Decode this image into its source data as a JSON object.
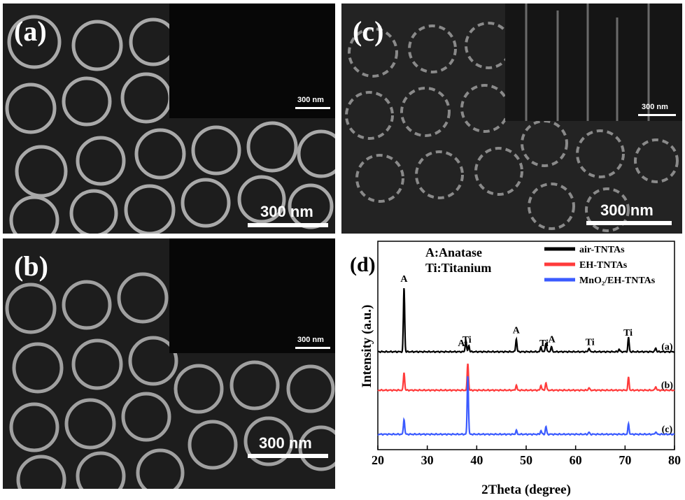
{
  "panels": {
    "a": {
      "label": "(a)",
      "scale_main": "300 nm",
      "scale_inset": "300 nm"
    },
    "b": {
      "label": "(b)",
      "scale_main": "300 nm",
      "scale_inset": "300 nm"
    },
    "c": {
      "label": "(c)",
      "scale_main": "300 nm",
      "scale_inset": "300 nm"
    },
    "d": {
      "label": "(d)"
    }
  },
  "colors": {
    "air": "#000000",
    "eh": "#ff3b3b",
    "mno2": "#3b5bff"
  },
  "chart_data": {
    "type": "line",
    "xlabel": "2Theta (degree)",
    "ylabel": "Intensity (a.u.)",
    "xlim": [
      20,
      80
    ],
    "xticks": [
      20,
      30,
      40,
      50,
      60,
      70,
      80
    ],
    "legend_position": "top-right",
    "key": [
      "A:Anatase",
      "Ti:Titanium"
    ],
    "series": [
      {
        "name": "air-TNTAs",
        "tag": "(a)",
        "color": "#000000",
        "peaks": [
          [
            25.3,
            100
          ],
          [
            37.8,
            18
          ],
          [
            38.4,
            10
          ],
          [
            48.0,
            20
          ],
          [
            53.0,
            8
          ],
          [
            54.0,
            14
          ],
          [
            55.1,
            8
          ],
          [
            62.7,
            6
          ],
          [
            68.8,
            4
          ],
          [
            70.7,
            22
          ],
          [
            76.2,
            6
          ]
        ]
      },
      {
        "name": "EH-TNTAs",
        "tag": "(b)",
        "color": "#ff3b3b",
        "peaks": [
          [
            25.3,
            28
          ],
          [
            38.2,
            42
          ],
          [
            48.0,
            8
          ],
          [
            53.0,
            8
          ],
          [
            54.0,
            12
          ],
          [
            62.7,
            4
          ],
          [
            70.7,
            20
          ],
          [
            76.2,
            6
          ]
        ]
      },
      {
        "name": "MnO2/EH-TNTAs",
        "tag": "(c)",
        "color": "#3b5bff",
        "peaks": [
          [
            25.3,
            24
          ],
          [
            38.2,
            92
          ],
          [
            48.0,
            6
          ],
          [
            53.0,
            6
          ],
          [
            54.0,
            12
          ],
          [
            62.7,
            3
          ],
          [
            70.7,
            16
          ],
          [
            76.2,
            4
          ]
        ]
      }
    ],
    "legend": [
      "air-TNTAs",
      "EH-TNTAs",
      "MnO₂/EH-TNTAs"
    ],
    "annotations": [
      {
        "text": "A",
        "x": 25.3
      },
      {
        "text": "A",
        "x": 36.9
      },
      {
        "text": "Ti",
        "x": 38.0
      },
      {
        "text": "A",
        "x": 48.0
      },
      {
        "text": "Ti",
        "x": 53.6
      },
      {
        "text": "A",
        "x": 55.2
      },
      {
        "text": "Ti",
        "x": 62.9
      },
      {
        "text": "Ti",
        "x": 70.6
      }
    ]
  }
}
